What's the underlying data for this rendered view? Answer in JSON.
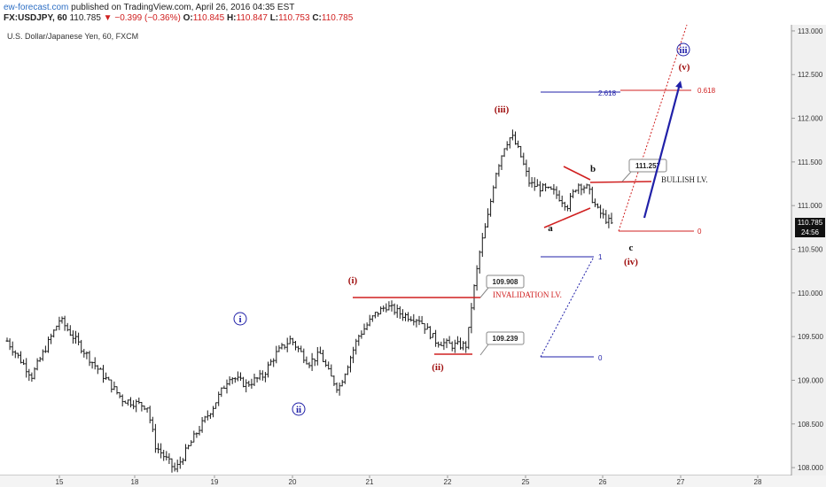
{
  "header": {
    "brand": "ew-forecast.com",
    "published": "published on TradingView.com, April 26, 2016 04:35 EST",
    "symbol": "FX:USDJPY, 60",
    "last": "110.785",
    "change": "▼ −0.399 (−0.36%)",
    "o_label": "O:",
    "o": "110.845",
    "h_label": "H:",
    "h": "110.847",
    "l_label": "L:",
    "l": "110.753",
    "c_label": "C:",
    "c": "110.785"
  },
  "chart_data": {
    "type": "candlestick",
    "title": "U.S. Dollar/Japanese Yen, 60, FXCM",
    "x_ticks": [
      "15",
      "18",
      "19",
      "20",
      "21",
      "22",
      "25",
      "26",
      "27",
      "28"
    ],
    "y_ticks": [
      "108.000",
      "108.500",
      "109.000",
      "109.500",
      "110.000",
      "110.500",
      "111.000",
      "111.500",
      "112.000",
      "112.500",
      "113.000"
    ],
    "ylim": [
      107.93,
      113.05
    ],
    "price_path": [
      {
        "t": 0,
        "p": 109.45
      },
      {
        "t": 1.5,
        "p": 109.05
      },
      {
        "t": 3.2,
        "p": 109.7
      },
      {
        "t": 5.2,
        "p": 109.2
      },
      {
        "t": 7,
        "p": 108.78
      },
      {
        "t": 8.5,
        "p": 108.7
      },
      {
        "t": 9.0,
        "p": 108.25
      },
      {
        "t": 10.2,
        "p": 107.97
      },
      {
        "t": 11.5,
        "p": 108.4
      },
      {
        "t": 12.5,
        "p": 108.7
      },
      {
        "t": 13.5,
        "p": 109.05
      },
      {
        "t": 14.5,
        "p": 108.95
      },
      {
        "t": 15.5,
        "p": 109.05
      },
      {
        "t": 16.3,
        "p": 109.3
      },
      {
        "t": 17.2,
        "p": 109.47
      },
      {
        "t": 18.3,
        "p": 109.2
      },
      {
        "t": 19.0,
        "p": 109.3
      },
      {
        "t": 19.6,
        "p": 109.05
      },
      {
        "t": 20.1,
        "p": 108.9
      },
      {
        "t": 20.5,
        "p": 109.1
      },
      {
        "t": 21.3,
        "p": 109.5
      },
      {
        "t": 22.3,
        "p": 109.75
      },
      {
        "t": 23.0,
        "p": 109.85
      },
      {
        "t": 24.0,
        "p": 109.75
      },
      {
        "t": 25.0,
        "p": 109.7
      },
      {
        "t": 26.0,
        "p": 109.45
      },
      {
        "t": 27.0,
        "p": 109.4
      },
      {
        "t": 27.9,
        "p": 109.4
      },
      {
        "t": 28.2,
        "p": 109.9
      },
      {
        "t": 28.7,
        "p": 110.5
      },
      {
        "t": 29.2,
        "p": 110.9
      },
      {
        "t": 29.6,
        "p": 111.35
      },
      {
        "t": 30.2,
        "p": 111.7
      },
      {
        "t": 30.6,
        "p": 111.8
      },
      {
        "t": 31.1,
        "p": 111.6
      },
      {
        "t": 31.7,
        "p": 111.25
      },
      {
        "t": 32.4,
        "p": 111.2
      },
      {
        "t": 33.2,
        "p": 111.15
      },
      {
        "t": 34.0,
        "p": 111.0
      },
      {
        "t": 34.6,
        "p": 111.25
      },
      {
        "t": 35.2,
        "p": 111.2
      },
      {
        "t": 35.8,
        "p": 110.95
      },
      {
        "t": 36.3,
        "p": 110.85
      },
      {
        "t": 36.7,
        "p": 110.78
      }
    ],
    "price_labels": {
      "current": "110.785",
      "countdown": "24:56"
    },
    "annotations": {
      "wave_i_circled": "i",
      "wave_ii_circled": "ii",
      "wave_iii_circled": "iii",
      "wave_i": "(i)",
      "wave_ii": "(ii)",
      "wave_iii": "(iii)",
      "wave_iv": "(iv)",
      "wave_v": "(v)",
      "wave_a": "a",
      "wave_b": "b",
      "wave_c": "c",
      "invalidation": "INVALIDATION LV.",
      "bullish": "BULLISH LV.",
      "callout_109908": "109.908",
      "callout_109239": "109.239",
      "callout_111257": "111.257",
      "fib_2618": "2.618",
      "fib_0618": "0.618",
      "fib_0_red": "0",
      "fib_1_blue": "1",
      "fib_0_blue": "0"
    },
    "grid": false
  },
  "colors": {
    "candle": "#1a1a1a",
    "red_annotation": "#d02020",
    "wave_red": "#a01010",
    "blue_annotation": "#2020a8",
    "axis_bg": "#eeeeee"
  }
}
